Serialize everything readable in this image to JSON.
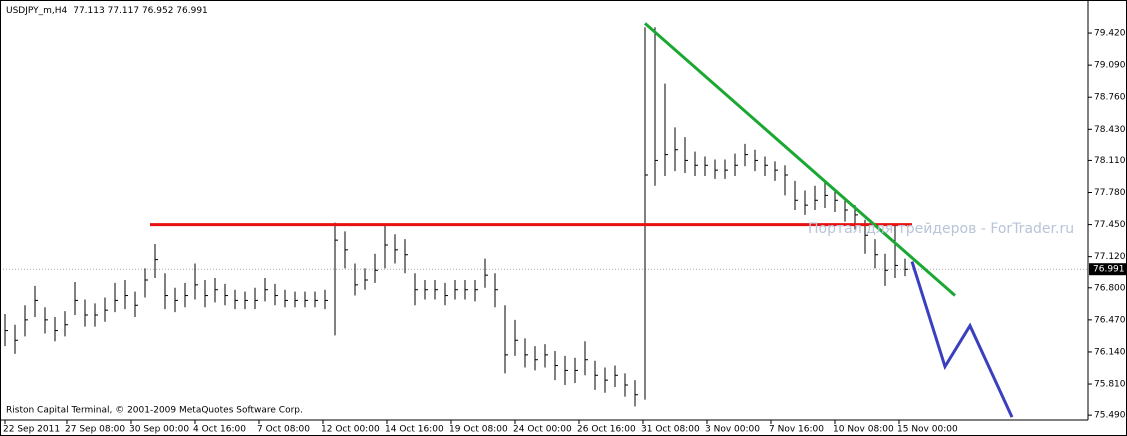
{
  "header": {
    "symbol": "USDJPY_m,H4",
    "ohlc": "77.113 77.117 76.952 76.991"
  },
  "footer": "Riston Capital Terminal, © 2001-2009 MetaQuotes Software Corp.",
  "watermark": "Портал для трейдеров - ForTrader.ru",
  "chart_data": {
    "type": "ohlc",
    "color": "#000000",
    "high": [
      76.53,
      76.42,
      76.62,
      76.82,
      76.6,
      76.5,
      76.56,
      76.86,
      76.68,
      76.64,
      76.7,
      76.85,
      76.88,
      76.76,
      77.0,
      77.25,
      76.95,
      76.8,
      76.85,
      77.05,
      76.88,
      76.9,
      76.84,
      76.78,
      76.76,
      76.8,
      76.9,
      76.84,
      76.78,
      76.76,
      76.76,
      76.76,
      76.78,
      77.47,
      77.38,
      77.05,
      77.0,
      77.15,
      77.45,
      77.35,
      77.3,
      76.95,
      76.88,
      76.88,
      76.85,
      76.88,
      76.88,
      76.88,
      77.1,
      76.95,
      76.62,
      76.47,
      76.28,
      76.2,
      76.22,
      76.15,
      76.1,
      76.08,
      76.25,
      76.05,
      75.98,
      76.0,
      75.92,
      75.85,
      79.48,
      79.48,
      78.9,
      78.45,
      78.35,
      78.2,
      78.15,
      78.12,
      78.12,
      78.18,
      78.28,
      78.22,
      78.15,
      78.1,
      78.06,
      77.9,
      77.8,
      77.85,
      77.88,
      77.8,
      77.72,
      77.65,
      77.5,
      77.3,
      77.15,
      77.45,
      77.1
    ],
    "low": [
      76.2,
      76.12,
      76.3,
      76.5,
      76.33,
      76.25,
      76.3,
      76.52,
      76.4,
      76.4,
      76.45,
      76.55,
      76.58,
      76.5,
      76.7,
      76.9,
      76.58,
      76.55,
      76.6,
      76.68,
      76.6,
      76.65,
      76.62,
      76.58,
      76.58,
      76.58,
      76.66,
      76.62,
      76.6,
      76.6,
      76.6,
      76.6,
      76.58,
      76.31,
      77.0,
      76.72,
      76.78,
      76.85,
      77.0,
      77.05,
      76.95,
      76.62,
      76.68,
      76.68,
      76.62,
      76.68,
      76.68,
      76.66,
      76.8,
      76.6,
      75.92,
      76.1,
      75.98,
      75.95,
      75.98,
      75.85,
      75.8,
      75.82,
      75.9,
      75.75,
      75.72,
      75.78,
      75.68,
      75.58,
      75.65,
      77.85,
      77.95,
      78.0,
      77.98,
      77.95,
      77.95,
      77.92,
      77.92,
      77.95,
      78.05,
      78.0,
      77.95,
      77.9,
      77.75,
      77.6,
      77.55,
      77.6,
      77.62,
      77.58,
      77.48,
      77.4,
      77.15,
      77.0,
      76.82,
      76.9,
      76.92
    ],
    "close": [
      76.36,
      76.26,
      76.47,
      76.67,
      76.47,
      76.36,
      76.42,
      76.67,
      76.52,
      76.52,
      76.57,
      76.67,
      76.72,
      76.62,
      76.88,
      77.09,
      76.72,
      76.67,
      76.72,
      76.83,
      76.72,
      76.78,
      76.72,
      76.67,
      76.67,
      76.67,
      76.78,
      76.72,
      76.67,
      76.67,
      76.67,
      76.67,
      76.67,
      77.29,
      77.19,
      76.83,
      76.88,
      76.98,
      77.24,
      77.19,
      77.14,
      76.78,
      76.78,
      76.78,
      76.72,
      76.78,
      76.78,
      76.78,
      76.93,
      76.78,
      76.11,
      76.26,
      76.11,
      76.06,
      76.11,
      76.0,
      75.95,
      75.95,
      76.06,
      75.9,
      75.85,
      75.9,
      75.8,
      75.7,
      77.96,
      78.11,
      78.17,
      78.22,
      78.11,
      78.06,
      78.06,
      78.01,
      78.01,
      78.06,
      78.17,
      78.11,
      78.06,
      78.01,
      77.96,
      77.7,
      77.65,
      77.7,
      77.75,
      77.7,
      77.6,
      77.55,
      77.34,
      77.14,
      76.98,
      77.03,
      76.99
    ],
    "lines": [
      {
        "color": "#e81010",
        "x": [
          14.5,
          90.7
        ],
        "y": [
          77.45,
          77.45
        ]
      },
      {
        "color": "#1aa832",
        "x": [
          64,
          95
        ],
        "y": [
          79.52,
          76.72
        ]
      },
      {
        "color": "#3a3fc0",
        "x": [
          90.7,
          94,
          96.5,
          100.7
        ],
        "y": [
          77.07,
          75.99,
          76.41,
          75.47
        ]
      }
    ],
    "last_price": {
      "value": 76.991,
      "label": "76.991"
    },
    "xlim": [
      -0.5,
      108.3
    ],
    "ylim": [
      75.44,
      79.76
    ],
    "yticks": [
      {
        "value": 79.42,
        "label": "79.420"
      },
      {
        "value": 79.09,
        "label": "79.090"
      },
      {
        "value": 78.76,
        "label": "78.760"
      },
      {
        "value": 78.43,
        "label": "78.430"
      },
      {
        "value": 78.11,
        "label": "78.110"
      },
      {
        "value": 77.78,
        "label": "77.780"
      },
      {
        "value": 77.45,
        "label": "77.450"
      },
      {
        "value": 77.12,
        "label": "77.120"
      },
      {
        "value": 76.8,
        "label": "76.800"
      },
      {
        "value": 76.47,
        "label": "76.470"
      },
      {
        "value": 76.14,
        "label": "76.140"
      },
      {
        "value": 75.81,
        "label": "75.810"
      },
      {
        "value": 75.49,
        "label": "75.490"
      }
    ],
    "xticks": [
      {
        "value": 0,
        "label": "22 Sep 2011"
      },
      {
        "value": 6.2,
        "label": "27 Sep 08:00"
      },
      {
        "value": 12.6,
        "label": "30 Sep 00:00"
      },
      {
        "value": 19,
        "label": "4 Oct 16:00"
      },
      {
        "value": 25.4,
        "label": "7 Oct 08:00"
      },
      {
        "value": 31.8,
        "label": "12 Oct 00:00"
      },
      {
        "value": 38.2,
        "label": "14 Oct 16:00"
      },
      {
        "value": 44.6,
        "label": "19 Oct 08:00"
      },
      {
        "value": 51,
        "label": "24 Oct 00:00"
      },
      {
        "value": 57.4,
        "label": "26 Oct 16:00"
      },
      {
        "value": 63.8,
        "label": "31 Oct 08:00"
      },
      {
        "value": 70.2,
        "label": "3 Nov 00:00"
      },
      {
        "value": 76.6,
        "label": "7 Nov 16:00"
      },
      {
        "value": 83,
        "label": "10 Nov 08:00"
      },
      {
        "value": 89.4,
        "label": "15 Nov 00:00"
      }
    ]
  }
}
